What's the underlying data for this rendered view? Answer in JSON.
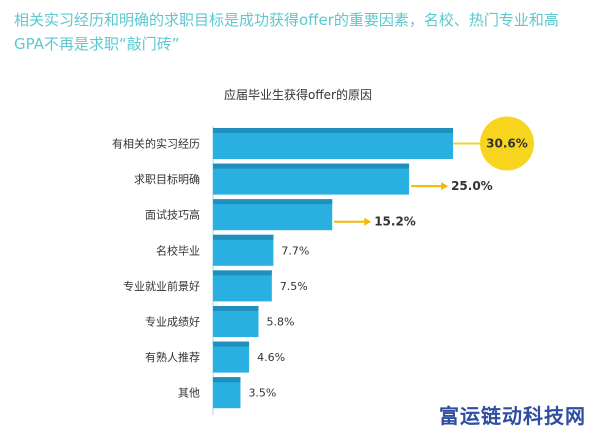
{
  "headline": "相关实习经历和明确的求职目标是成功获得offer的重要因素，名校、热门专业和高GPA不再是求职“敲门砖”",
  "watermark": "富运链动科技网",
  "colors": {
    "bar": "#2ab0e0",
    "bar_top": "#1f8fbd",
    "highlight_1": "#f7d51f",
    "highlight_2": "#f5b800",
    "headline": "#5cc8cf"
  },
  "chart_data": {
    "type": "bar",
    "orientation": "horizontal",
    "title": "应届毕业生获得offer的原因",
    "categories": [
      "有相关的实习经历",
      "求职目标明确",
      "面试技巧高",
      "名校毕业",
      "专业就业前景好",
      "专业成绩好",
      "有熟人推荐",
      "其他"
    ],
    "values": [
      30.6,
      25.0,
      15.2,
      7.7,
      7.5,
      5.8,
      4.6,
      3.5
    ],
    "value_labels": [
      "30.6%",
      "25.0%",
      "15.2%",
      "7.7%",
      "7.5%",
      "5.8%",
      "4.6%",
      "3.5%"
    ],
    "unit": "%",
    "xlim": [
      0,
      30.6
    ],
    "highlighted_count": 3,
    "grid": false,
    "legend": "none"
  }
}
